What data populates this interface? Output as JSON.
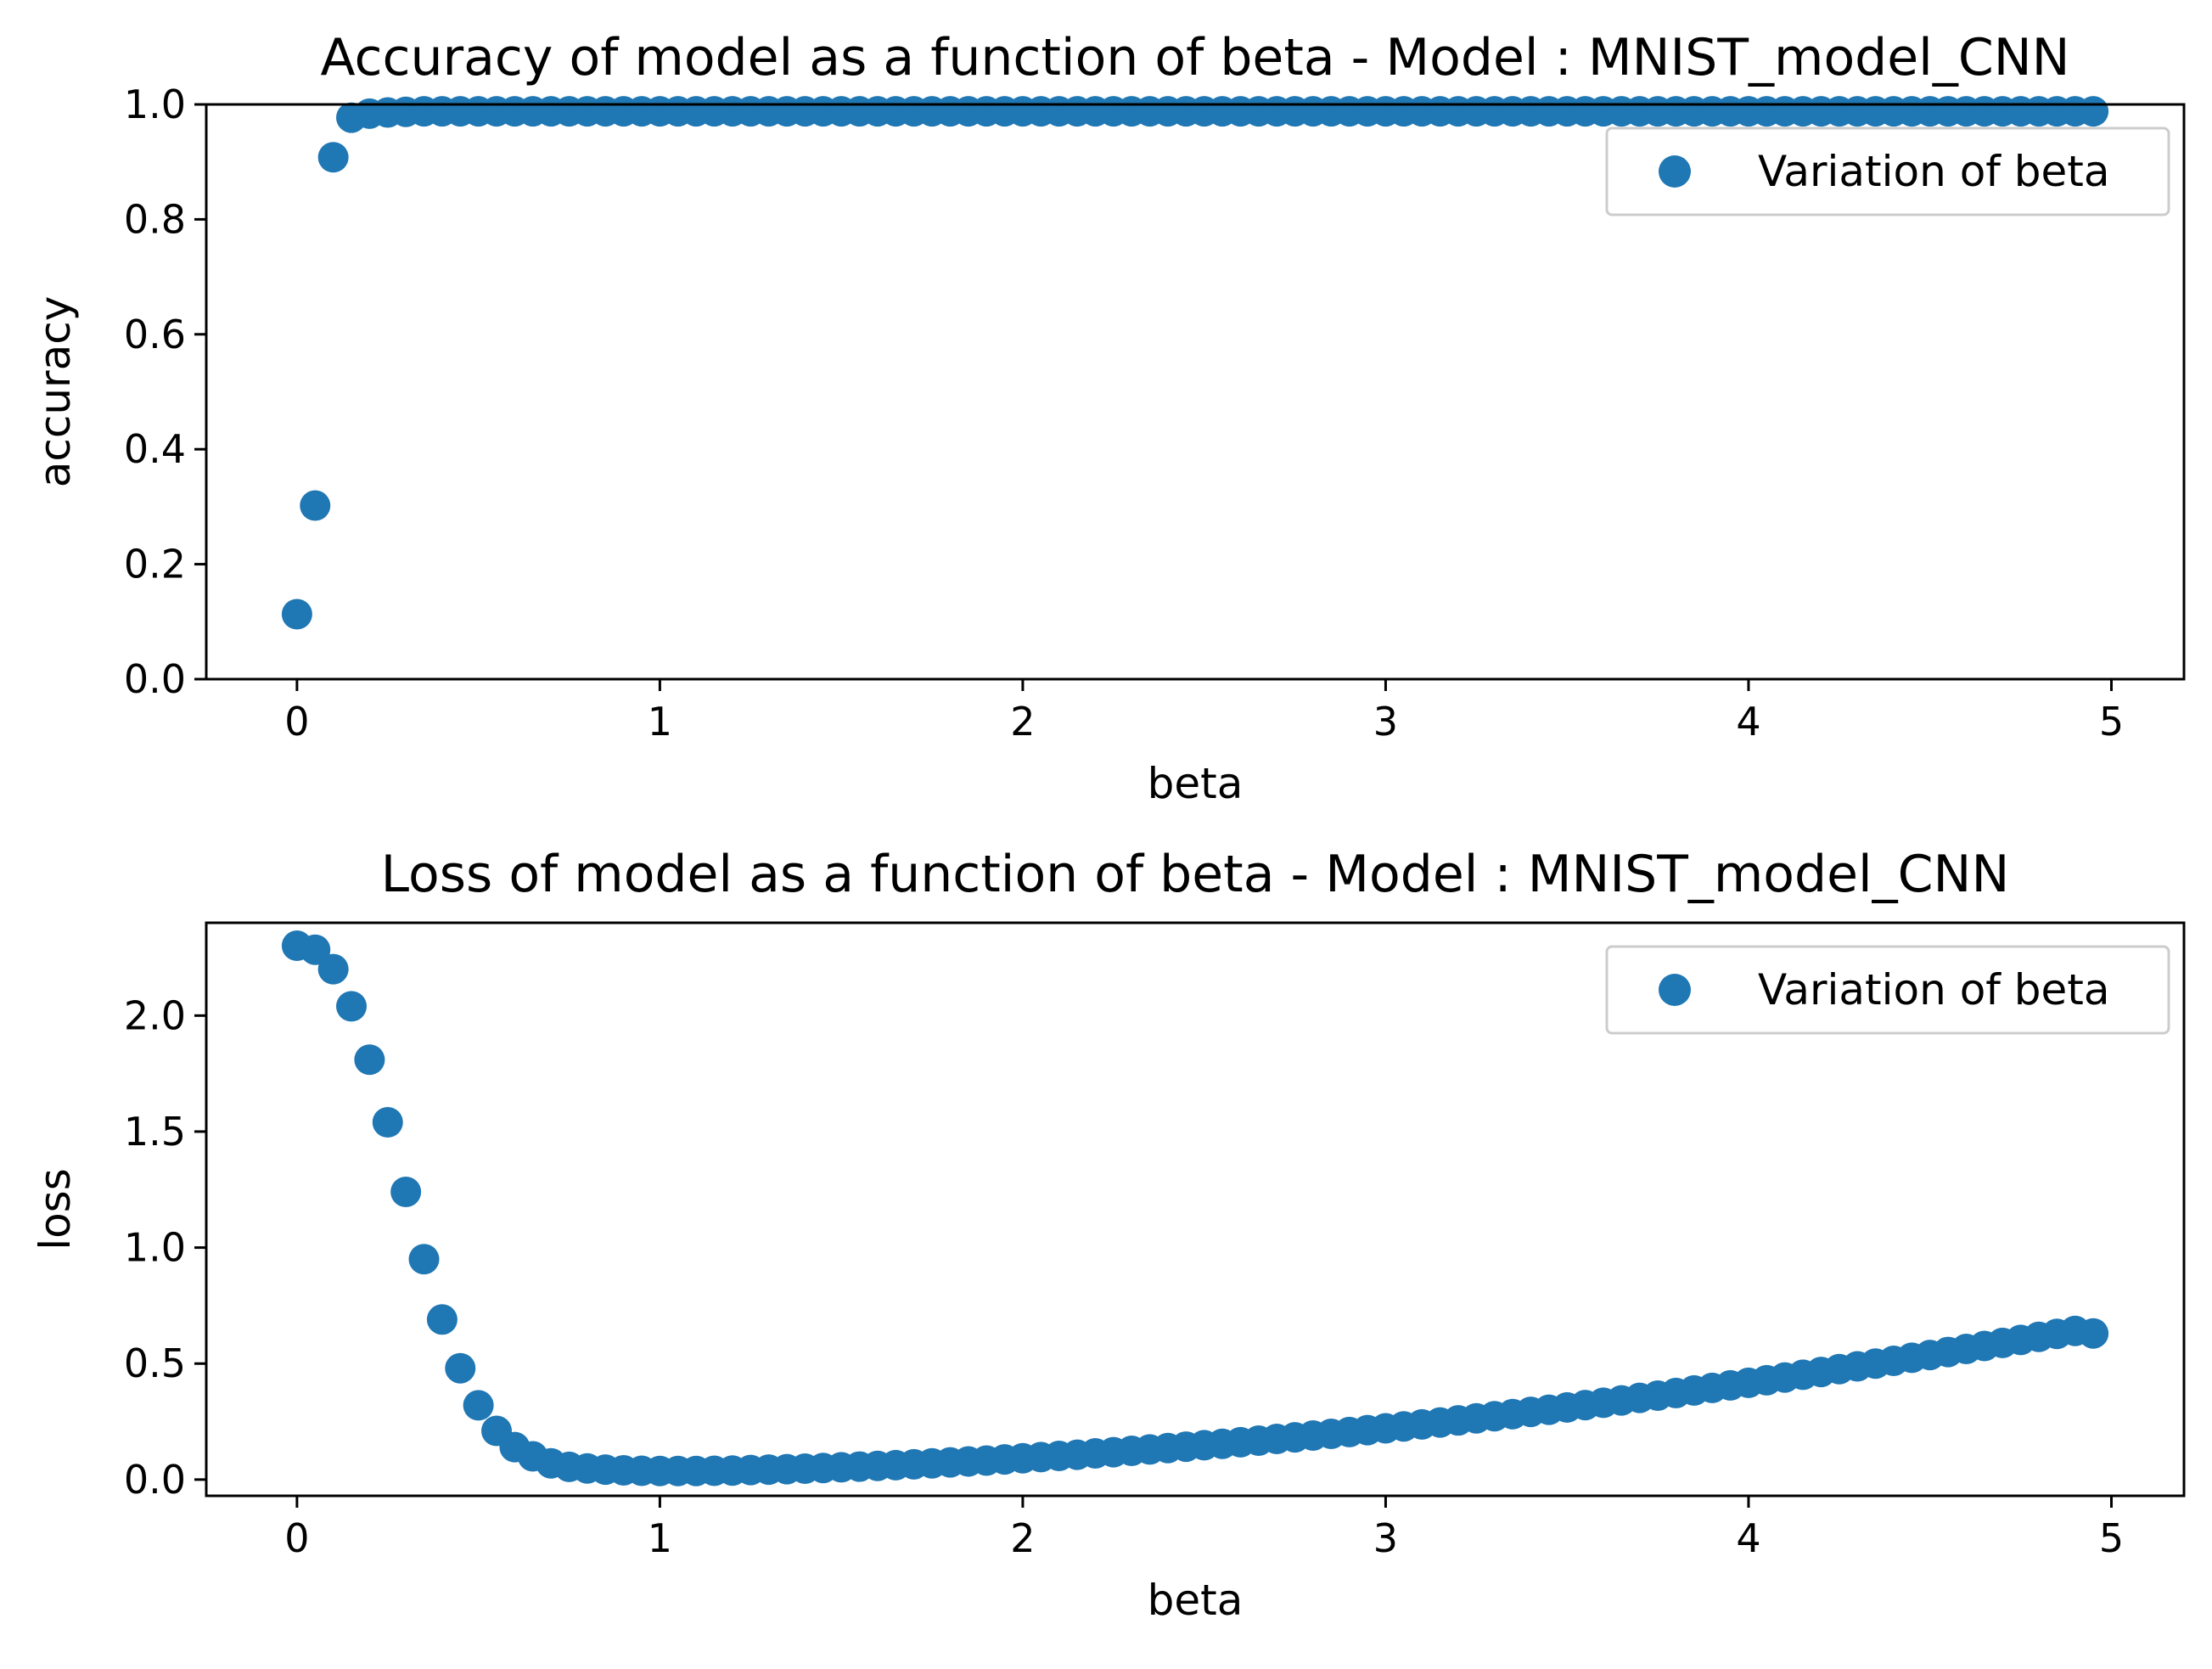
{
  "chart_data": [
    {
      "type": "scatter",
      "title": "Accuracy of model as a function of beta - Model : MNIST_model_CNN",
      "xlabel": "beta",
      "ylabel": "accuracy",
      "xlim": [
        -0.25,
        5.2
      ],
      "ylim": [
        0.0,
        1.0
      ],
      "xticks": [
        "0",
        "1",
        "2",
        "3",
        "4",
        "5"
      ],
      "yticks": [
        "0.0",
        "0.2",
        "0.4",
        "0.6",
        "0.8",
        "1.0"
      ],
      "grid": false,
      "legend_position": "upper right",
      "color": "#1f77b4",
      "series": [
        {
          "name": "Variation of beta",
          "x": [
            0.0,
            0.05,
            0.1,
            0.15,
            0.2,
            0.25,
            0.3,
            0.35,
            0.4,
            0.45,
            0.5,
            0.55,
            0.6,
            0.65,
            0.7,
            0.75,
            0.8,
            0.85,
            0.9,
            0.95,
            1.0,
            1.05,
            1.1,
            1.15,
            1.2,
            1.25,
            1.3,
            1.35,
            1.4,
            1.45,
            1.5,
            1.55,
            1.6,
            1.65,
            1.7,
            1.75,
            1.8,
            1.85,
            1.9,
            1.95,
            2.0,
            2.05,
            2.1,
            2.15,
            2.2,
            2.25,
            2.3,
            2.35,
            2.4,
            2.45,
            2.5,
            2.55,
            2.6,
            2.65,
            2.7,
            2.75,
            2.8,
            2.85,
            2.9,
            2.95,
            3.0,
            3.05,
            3.1,
            3.15,
            3.2,
            3.25,
            3.3,
            3.35,
            3.4,
            3.45,
            3.5,
            3.55,
            3.6,
            3.65,
            3.7,
            3.75,
            3.8,
            3.85,
            3.9,
            3.95,
            4.0,
            4.05,
            4.1,
            4.15,
            4.2,
            4.25,
            4.3,
            4.35,
            4.4,
            4.45,
            4.5,
            4.55,
            4.6,
            4.65,
            4.7,
            4.75,
            4.8,
            4.85,
            4.9,
            4.95
          ],
          "y": [
            0.113,
            0.302,
            0.908,
            0.977,
            0.984,
            0.986,
            0.987,
            0.988,
            0.988,
            0.988,
            0.988,
            0.988,
            0.988,
            0.988,
            0.988,
            0.988,
            0.988,
            0.988,
            0.988,
            0.988,
            0.988,
            0.988,
            0.988,
            0.988,
            0.988,
            0.988,
            0.988,
            0.988,
            0.988,
            0.988,
            0.988,
            0.988,
            0.988,
            0.988,
            0.988,
            0.988,
            0.988,
            0.988,
            0.988,
            0.988,
            0.988,
            0.988,
            0.988,
            0.988,
            0.988,
            0.988,
            0.988,
            0.988,
            0.988,
            0.988,
            0.988,
            0.988,
            0.988,
            0.988,
            0.988,
            0.988,
            0.988,
            0.988,
            0.988,
            0.988,
            0.988,
            0.988,
            0.988,
            0.988,
            0.988,
            0.988,
            0.988,
            0.988,
            0.988,
            0.988,
            0.988,
            0.988,
            0.988,
            0.988,
            0.988,
            0.988,
            0.988,
            0.988,
            0.988,
            0.988,
            0.988,
            0.988,
            0.988,
            0.988,
            0.988,
            0.988,
            0.988,
            0.988,
            0.988,
            0.988,
            0.988,
            0.988,
            0.988,
            0.988,
            0.988,
            0.988,
            0.988,
            0.988,
            0.988,
            0.988
          ]
        }
      ]
    },
    {
      "type": "scatter",
      "title": "Loss of model as a function of beta - Model : MNIST_model_CNN",
      "xlabel": "beta",
      "ylabel": "loss",
      "xlim": [
        -0.25,
        5.2
      ],
      "ylim": [
        -0.07,
        2.4
      ],
      "xticks": [
        "0",
        "1",
        "2",
        "3",
        "4",
        "5"
      ],
      "yticks": [
        "0.0",
        "0.5",
        "1.0",
        "1.5",
        "2.0"
      ],
      "grid": false,
      "legend_position": "upper right",
      "color": "#1f77b4",
      "series": [
        {
          "name": "Variation of beta",
          "x": [
            0.0,
            0.05,
            0.1,
            0.15,
            0.2,
            0.25,
            0.3,
            0.35,
            0.4,
            0.45,
            0.5,
            0.55,
            0.6,
            0.65,
            0.7,
            0.75,
            0.8,
            0.85,
            0.9,
            0.95,
            1.0,
            1.05,
            1.1,
            1.15,
            1.2,
            1.25,
            1.3,
            1.35,
            1.4,
            1.45,
            1.5,
            1.55,
            1.6,
            1.65,
            1.7,
            1.75,
            1.8,
            1.85,
            1.9,
            1.95,
            2.0,
            2.05,
            2.1,
            2.15,
            2.2,
            2.25,
            2.3,
            2.35,
            2.4,
            2.45,
            2.5,
            2.55,
            2.6,
            2.65,
            2.7,
            2.75,
            2.8,
            2.85,
            2.9,
            2.95,
            3.0,
            3.05,
            3.1,
            3.15,
            3.2,
            3.25,
            3.3,
            3.35,
            3.4,
            3.45,
            3.5,
            3.55,
            3.6,
            3.65,
            3.7,
            3.75,
            3.8,
            3.85,
            3.9,
            3.95,
            4.0,
            4.05,
            4.1,
            4.15,
            4.2,
            4.25,
            4.3,
            4.35,
            4.4,
            4.45,
            4.5,
            4.55,
            4.6,
            4.65,
            4.7,
            4.75,
            4.8,
            4.85,
            4.9,
            4.95
          ],
          "y": [
            2.301,
            2.284,
            2.2,
            2.04,
            1.81,
            1.54,
            1.24,
            0.95,
            0.69,
            0.48,
            0.32,
            0.21,
            0.14,
            0.1,
            0.07,
            0.055,
            0.048,
            0.043,
            0.04,
            0.038,
            0.037,
            0.037,
            0.037,
            0.038,
            0.039,
            0.041,
            0.043,
            0.045,
            0.047,
            0.05,
            0.053,
            0.056,
            0.059,
            0.062,
            0.066,
            0.07,
            0.074,
            0.078,
            0.082,
            0.087,
            0.092,
            0.097,
            0.102,
            0.107,
            0.113,
            0.118,
            0.124,
            0.13,
            0.136,
            0.142,
            0.148,
            0.154,
            0.161,
            0.168,
            0.175,
            0.182,
            0.19,
            0.197,
            0.205,
            0.213,
            0.221,
            0.229,
            0.238,
            0.246,
            0.255,
            0.264,
            0.273,
            0.282,
            0.292,
            0.301,
            0.311,
            0.321,
            0.331,
            0.341,
            0.352,
            0.362,
            0.373,
            0.384,
            0.395,
            0.406,
            0.417,
            0.428,
            0.44,
            0.452,
            0.464,
            0.476,
            0.488,
            0.5,
            0.512,
            0.525,
            0.537,
            0.55,
            0.563,
            0.576,
            0.589,
            0.602,
            0.615,
            0.628,
            0.641,
            0.63
          ]
        }
      ]
    }
  ]
}
